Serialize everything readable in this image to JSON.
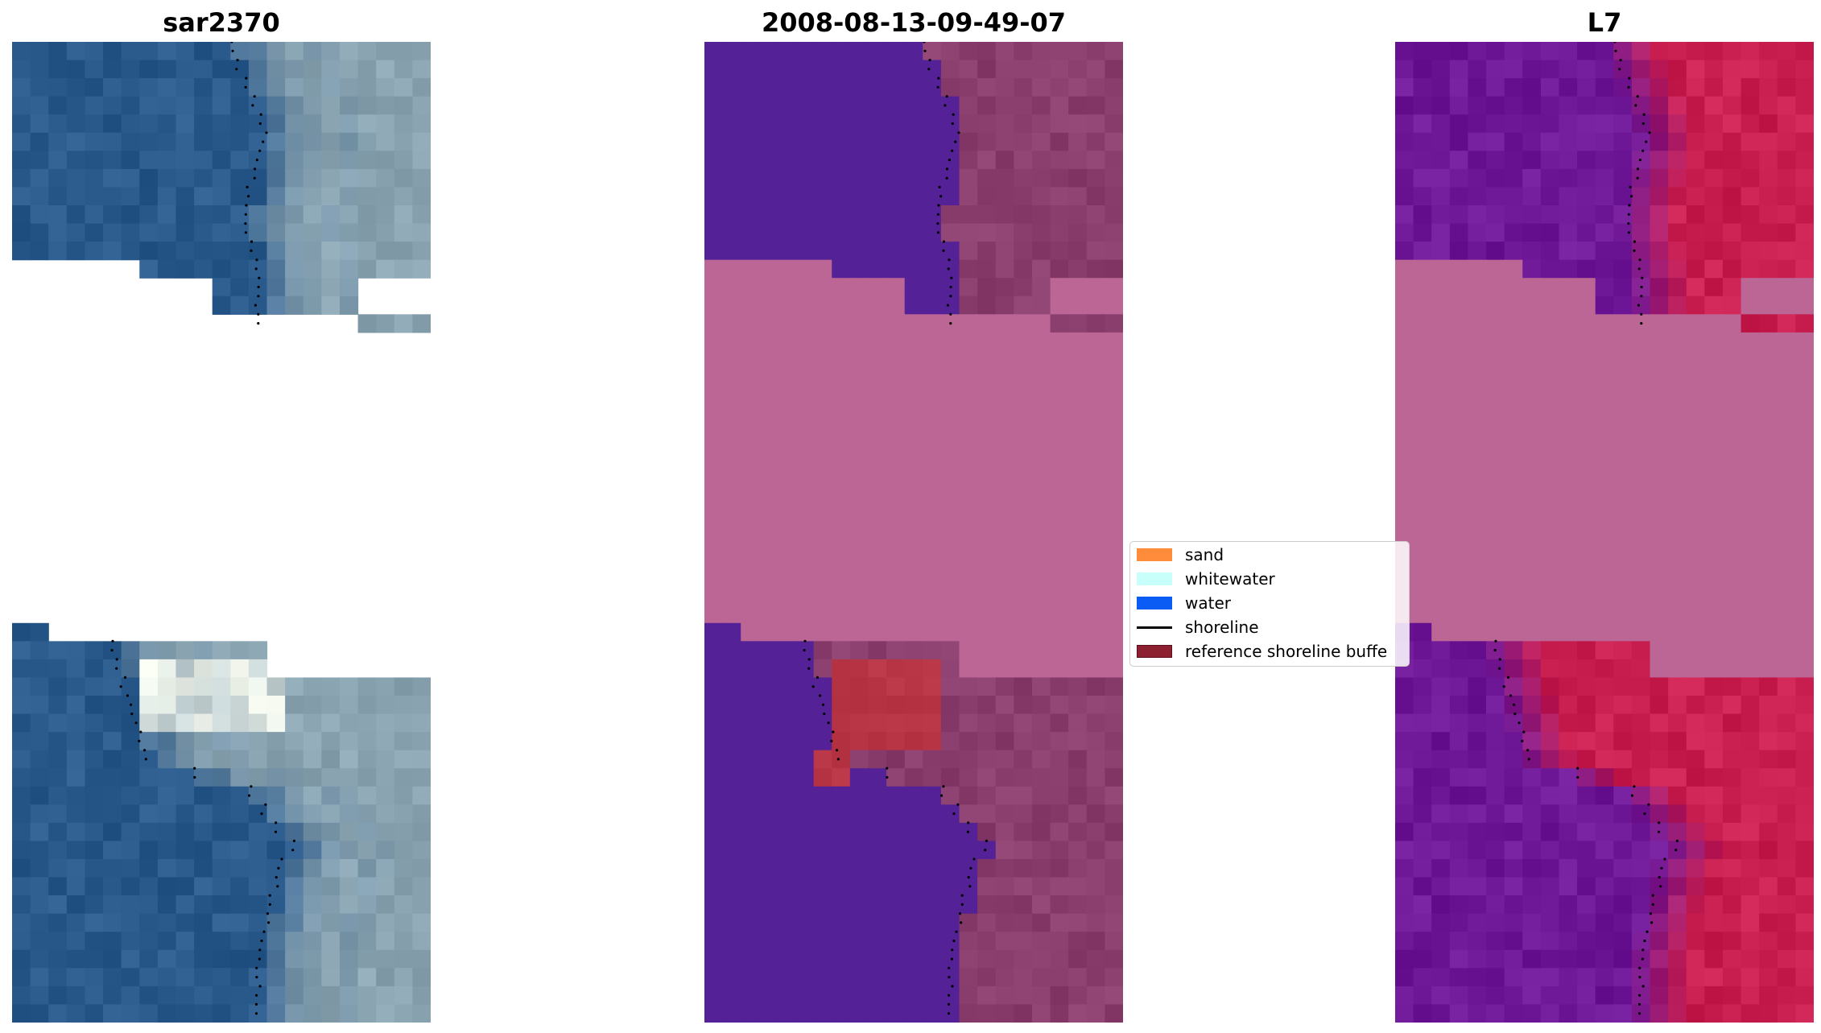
{
  "panels": [
    {
      "id": "rgb",
      "title": "sar2370"
    },
    {
      "id": "class",
      "title": "2008-08-13-09-49-07"
    },
    {
      "id": "index",
      "title": "L7"
    }
  ],
  "legend": {
    "items": [
      {
        "label": "sand",
        "color": "#ff8c3a",
        "kind": "patch"
      },
      {
        "label": "whitewater",
        "color": "#c8fffa",
        "kind": "patch"
      },
      {
        "label": "water",
        "color": "#0a5cf5",
        "kind": "patch"
      },
      {
        "label": "shoreline",
        "color": "#000000",
        "kind": "line"
      },
      {
        "label": "reference shoreline buffe",
        "color": "#8c2030",
        "kind": "patch"
      }
    ]
  },
  "colors": {
    "nodata": "#bc6696",
    "class_water": "#542196",
    "class_land": "#8a3e6e",
    "class_highlight": "#b73545",
    "rgb_water": "#2a5a8c",
    "rgb_land": "#8aa4b2",
    "index_water": "#6e1898",
    "index_land": "#c81e50"
  }
}
